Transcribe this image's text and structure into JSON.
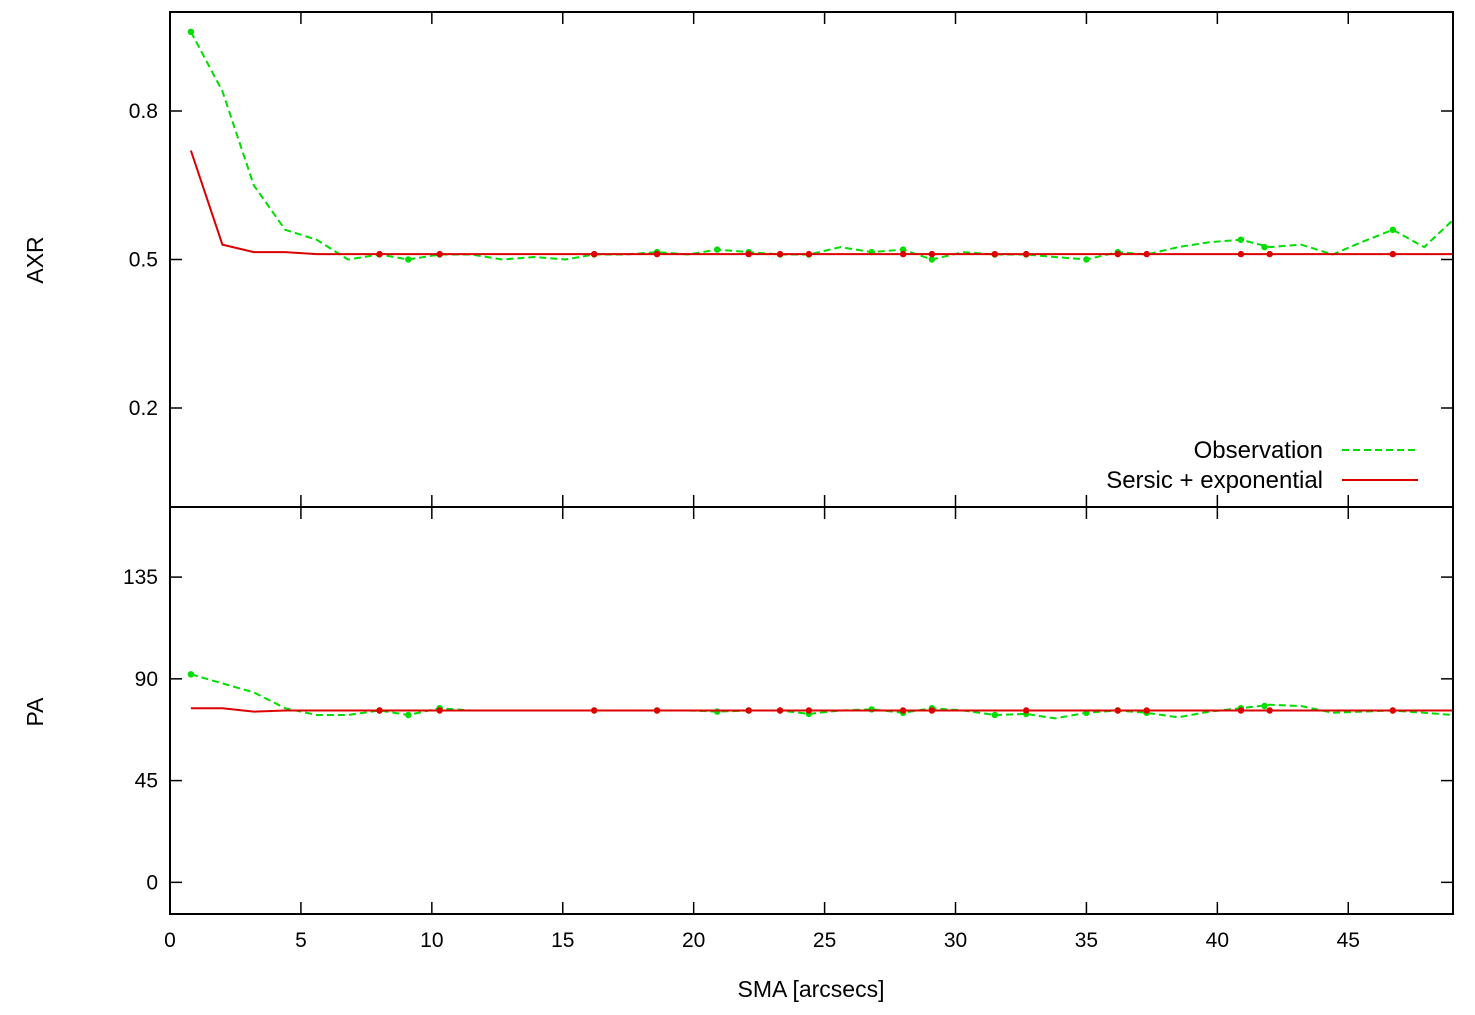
{
  "colors": {
    "observation": "#00dd00",
    "model": "#dd0000",
    "axes": "#000000",
    "background": "#ffffff"
  },
  "chart_data": [
    {
      "type": "line",
      "panel": "top",
      "ylabel": "AXR",
      "xlim": [
        0,
        49
      ],
      "ylim": [
        0.0,
        1.0
      ],
      "yticks": [
        0.2,
        0.5,
        0.8
      ],
      "ytick_labels": [
        "0.2",
        "0.5",
        "0.8"
      ],
      "grid": false,
      "legend": {
        "position": "bottom-right",
        "entries": [
          "Observation",
          "Sersic + exponential"
        ]
      },
      "series": [
        {
          "name": "Observation",
          "style": "dashed",
          "x": [
            0.8,
            2.0,
            3.2,
            4.4,
            5.6,
            6.8,
            8.0,
            9.1,
            10.3,
            11.5,
            12.7,
            13.9,
            15.1,
            16.2,
            17.4,
            18.6,
            19.8,
            20.9,
            22.1,
            23.3,
            24.4,
            25.6,
            26.8,
            28.0,
            29.1,
            30.3,
            31.5,
            32.7,
            33.8,
            35.0,
            36.2,
            37.3,
            38.5,
            39.7,
            40.9,
            42.0,
            43.2,
            44.4,
            45.5,
            46.7,
            47.9,
            49.0
          ],
          "y": [
            0.96,
            0.84,
            0.65,
            0.56,
            0.54,
            0.5,
            0.51,
            0.5,
            0.51,
            0.51,
            0.5,
            0.505,
            0.5,
            0.51,
            0.51,
            0.515,
            0.51,
            0.52,
            0.515,
            0.51,
            0.51,
            0.525,
            0.515,
            0.52,
            0.5,
            0.515,
            0.51,
            0.51,
            0.505,
            0.5,
            0.515,
            0.51,
            0.525,
            0.535,
            0.54,
            0.525,
            0.53,
            0.51,
            0.535,
            0.56,
            0.525,
            0.58
          ],
          "markers_x": [
            0.8,
            8.0,
            9.1,
            10.3,
            16.2,
            18.6,
            20.9,
            22.1,
            23.3,
            24.4,
            26.8,
            28.0,
            29.1,
            31.5,
            32.7,
            35.0,
            36.2,
            40.9,
            41.8,
            46.7
          ],
          "markers_y": [
            0.96,
            0.51,
            0.5,
            0.51,
            0.51,
            0.515,
            0.52,
            0.515,
            0.51,
            0.51,
            0.515,
            0.52,
            0.5,
            0.51,
            0.51,
            0.5,
            0.515,
            0.54,
            0.525,
            0.56
          ]
        },
        {
          "name": "Sersic + exponential",
          "style": "solid",
          "x": [
            0.8,
            2.0,
            3.2,
            4.4,
            5.6,
            7.0,
            10.0,
            20.0,
            30.0,
            40.0,
            49.0
          ],
          "y": [
            0.72,
            0.53,
            0.515,
            0.515,
            0.511,
            0.511,
            0.511,
            0.511,
            0.511,
            0.511,
            0.511
          ],
          "markers_x": [
            8.0,
            10.3,
            16.2,
            18.6,
            22.1,
            23.3,
            24.4,
            28.0,
            29.1,
            31.5,
            32.7,
            36.2,
            37.3,
            40.9,
            42.0,
            46.7
          ],
          "markers_y": [
            0.511,
            0.511,
            0.511,
            0.511,
            0.511,
            0.511,
            0.511,
            0.511,
            0.511,
            0.511,
            0.511,
            0.511,
            0.511,
            0.511,
            0.511,
            0.511
          ]
        }
      ]
    },
    {
      "type": "line",
      "panel": "bottom",
      "ylabel": "PA",
      "xlabel": "SMA [arcsecs]",
      "xlim": [
        0,
        49
      ],
      "ylim": [
        -14,
        166
      ],
      "xticks": [
        0,
        5,
        10,
        15,
        20,
        25,
        30,
        35,
        40,
        45
      ],
      "xtick_labels": [
        "0",
        "5",
        "10",
        "15",
        "20",
        "25",
        "30",
        "35",
        "40",
        "45"
      ],
      "yticks": [
        0,
        45,
        90,
        135
      ],
      "ytick_labels": [
        "0",
        "45",
        "90",
        "135"
      ],
      "grid": false,
      "series": [
        {
          "name": "Observation",
          "style": "dashed",
          "x": [
            0.8,
            2.0,
            3.2,
            4.4,
            5.6,
            6.8,
            8.0,
            9.1,
            10.3,
            11.5,
            12.7,
            13.9,
            15.1,
            16.2,
            17.4,
            18.6,
            19.8,
            20.9,
            22.1,
            23.3,
            24.4,
            25.6,
            26.8,
            28.0,
            29.1,
            30.3,
            31.5,
            32.7,
            33.8,
            35.0,
            36.2,
            37.3,
            38.5,
            39.7,
            40.9,
            42.0,
            43.2,
            44.4,
            45.5,
            46.7,
            47.9,
            49.0
          ],
          "y": [
            92,
            88,
            84,
            77,
            74,
            74,
            76,
            74,
            77,
            76,
            76,
            76,
            76,
            76,
            76,
            76,
            76,
            75.5,
            76,
            76,
            74.5,
            76,
            76.5,
            75,
            77,
            76,
            74,
            74.5,
            72.5,
            75,
            76,
            75,
            73,
            75.5,
            77,
            78.5,
            78,
            75,
            75.5,
            76,
            75,
            74
          ],
          "markers_x": [
            0.8,
            8.0,
            9.1,
            10.3,
            16.2,
            18.6,
            20.9,
            22.1,
            23.3,
            24.4,
            26.8,
            28.0,
            29.1,
            31.5,
            32.7,
            35.0,
            36.2,
            37.3,
            40.9,
            41.8,
            46.7
          ],
          "markers_y": [
            92,
            76,
            74,
            77,
            76,
            76,
            75.5,
            76,
            76,
            74.5,
            76.5,
            75,
            77,
            74,
            74.5,
            75,
            76,
            75,
            77,
            78,
            76
          ]
        },
        {
          "name": "Sersic + exponential",
          "style": "solid",
          "x": [
            0.8,
            2.0,
            3.2,
            4.4,
            5.6,
            7.0,
            10.0,
            20.0,
            30.0,
            40.0,
            49.0
          ],
          "y": [
            77,
            77,
            75.5,
            76,
            76,
            76,
            76,
            76,
            76,
            76,
            76
          ],
          "markers_x": [
            8.0,
            10.3,
            16.2,
            18.6,
            22.1,
            23.3,
            24.4,
            28.0,
            29.1,
            32.7,
            36.2,
            37.3,
            40.9,
            42.0,
            46.7
          ],
          "markers_y": [
            76,
            76,
            76,
            76,
            76,
            76,
            76,
            76,
            76,
            76,
            76,
            76,
            76,
            76,
            76
          ]
        }
      ]
    }
  ]
}
